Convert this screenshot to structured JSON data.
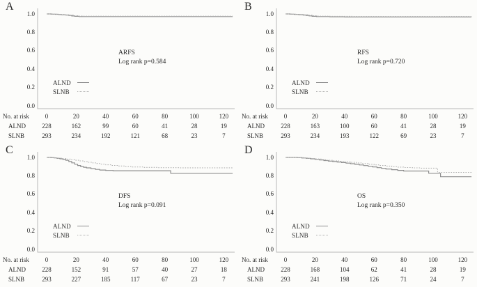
{
  "figure": {
    "background": "#fcfcfa",
    "axis_color": "#b8b8b8",
    "text_color": "#2a2a2a",
    "series_colors": {
      "ALND": "#8e8e8e",
      "SLNB": "#b2b2b2"
    }
  },
  "risk_header": "No. at risk",
  "x_ticks": [
    0,
    20,
    40,
    60,
    80,
    100,
    120
  ],
  "y_tick_labels": [
    "1.0",
    "0.8",
    "0.6",
    "0.4",
    "0.2",
    "0.0"
  ],
  "chart_data": [
    {
      "panel": "A",
      "type": "line",
      "subtype": "kaplan-meier-step",
      "title": "ARFS",
      "subtitle": "Log rank p=0.584",
      "xlabel": "",
      "ylabel": "",
      "xlim": [
        0,
        126
      ],
      "ylim": [
        0.0,
        1.05
      ],
      "x_ticks": [
        0,
        20,
        40,
        60,
        80,
        100,
        120
      ],
      "y_ticks": [
        1.0,
        0.8,
        0.6,
        0.4,
        0.2,
        0.0
      ],
      "grid": false,
      "legend_position": "lower-left",
      "series": [
        {
          "name": "ALND",
          "style": "solid",
          "steps": [
            [
              0,
              1.0
            ],
            [
              3,
              0.998
            ],
            [
              6,
              0.996
            ],
            [
              8,
              0.993
            ],
            [
              10,
              0.99
            ],
            [
              13,
              0.987
            ],
            [
              15,
              0.983
            ],
            [
              17,
              0.978
            ],
            [
              19,
              0.974
            ],
            [
              22,
              0.971
            ],
            [
              126,
              0.971
            ]
          ]
        },
        {
          "name": "SLNB",
          "style": "dotted",
          "steps": [
            [
              0,
              1.0
            ],
            [
              4,
              0.998
            ],
            [
              8,
              0.995
            ],
            [
              12,
              0.991
            ],
            [
              15,
              0.987
            ],
            [
              18,
              0.981
            ],
            [
              21,
              0.977
            ],
            [
              24,
              0.976
            ],
            [
              126,
              0.976
            ]
          ]
        }
      ],
      "risk_table": {
        "label": "No. at risk",
        "times": [
          0,
          20,
          40,
          60,
          80,
          100,
          120
        ],
        "rows": [
          {
            "name": "ALND",
            "counts": [
              228,
              162,
              99,
              60,
              41,
              28,
              19
            ]
          },
          {
            "name": "SLNB",
            "counts": [
              293,
              234,
              192,
              121,
              68,
              23,
              7
            ]
          }
        ]
      }
    },
    {
      "panel": "B",
      "type": "line",
      "subtype": "kaplan-meier-step",
      "title": "RFS",
      "subtitle": "Log rank p=0.720",
      "xlabel": "",
      "ylabel": "",
      "xlim": [
        0,
        126
      ],
      "ylim": [
        0.0,
        1.05
      ],
      "x_ticks": [
        0,
        20,
        40,
        60,
        80,
        100,
        120
      ],
      "y_ticks": [
        1.0,
        0.8,
        0.6,
        0.4,
        0.2,
        0.0
      ],
      "grid": false,
      "legend_position": "lower-left",
      "series": [
        {
          "name": "ALND",
          "style": "solid",
          "steps": [
            [
              0,
              1.0
            ],
            [
              3,
              0.998
            ],
            [
              6,
              0.995
            ],
            [
              9,
              0.992
            ],
            [
              12,
              0.988
            ],
            [
              14,
              0.984
            ],
            [
              16,
              0.979
            ],
            [
              18,
              0.974
            ],
            [
              21,
              0.971
            ],
            [
              30,
              0.969
            ],
            [
              40,
              0.967
            ],
            [
              126,
              0.967
            ]
          ]
        },
        {
          "name": "SLNB",
          "style": "dotted",
          "steps": [
            [
              0,
              1.0
            ],
            [
              4,
              0.998
            ],
            [
              8,
              0.995
            ],
            [
              12,
              0.991
            ],
            [
              15,
              0.986
            ],
            [
              18,
              0.98
            ],
            [
              22,
              0.976
            ],
            [
              30,
              0.974
            ],
            [
              45,
              0.972
            ],
            [
              126,
              0.972
            ]
          ]
        }
      ],
      "risk_table": {
        "label": "No. at risk",
        "times": [
          0,
          20,
          40,
          60,
          80,
          100,
          120
        ],
        "rows": [
          {
            "name": "ALND",
            "counts": [
              228,
              163,
              100,
              60,
              41,
              28,
              19
            ]
          },
          {
            "name": "SLNB",
            "counts": [
              293,
              234,
              193,
              122,
              69,
              23,
              7
            ]
          }
        ]
      }
    },
    {
      "panel": "C",
      "type": "line",
      "subtype": "kaplan-meier-step",
      "title": "DFS",
      "subtitle": "Log rank p=0.091",
      "xlabel": "",
      "ylabel": "",
      "xlim": [
        0,
        126
      ],
      "ylim": [
        0.0,
        1.05
      ],
      "x_ticks": [
        0,
        20,
        40,
        60,
        80,
        100,
        120
      ],
      "y_ticks": [
        1.0,
        0.8,
        0.6,
        0.4,
        0.2,
        0.0
      ],
      "grid": false,
      "legend_position": "lower-left",
      "series": [
        {
          "name": "ALND",
          "style": "solid",
          "steps": [
            [
              0,
              1.0
            ],
            [
              3,
              0.998
            ],
            [
              5,
              0.995
            ],
            [
              7,
              0.99
            ],
            [
              9,
              0.985
            ],
            [
              11,
              0.978
            ],
            [
              13,
              0.968
            ],
            [
              15,
              0.955
            ],
            [
              17,
              0.941
            ],
            [
              19,
              0.926
            ],
            [
              21,
              0.912
            ],
            [
              23,
              0.901
            ],
            [
              25,
              0.893
            ],
            [
              27,
              0.886
            ],
            [
              30,
              0.878
            ],
            [
              33,
              0.87
            ],
            [
              36,
              0.863
            ],
            [
              40,
              0.858
            ],
            [
              45,
              0.855
            ],
            [
              84,
              0.827
            ],
            [
              126,
              0.827
            ]
          ]
        },
        {
          "name": "SLNB",
          "style": "dotted",
          "steps": [
            [
              0,
              1.0
            ],
            [
              4,
              0.998
            ],
            [
              6,
              0.995
            ],
            [
              8,
              0.991
            ],
            [
              10,
              0.987
            ],
            [
              13,
              0.982
            ],
            [
              16,
              0.976
            ],
            [
              19,
              0.969
            ],
            [
              22,
              0.962
            ],
            [
              25,
              0.955
            ],
            [
              28,
              0.948
            ],
            [
              31,
              0.941
            ],
            [
              34,
              0.934
            ],
            [
              37,
              0.927
            ],
            [
              40,
              0.92
            ],
            [
              44,
              0.913
            ],
            [
              48,
              0.907
            ],
            [
              53,
              0.901
            ],
            [
              58,
              0.896
            ],
            [
              65,
              0.892
            ],
            [
              75,
              0.889
            ],
            [
              90,
              0.887
            ],
            [
              126,
              0.887
            ]
          ]
        }
      ],
      "risk_table": {
        "label": "No. at risk",
        "times": [
          0,
          20,
          40,
          60,
          80,
          100,
          120
        ],
        "rows": [
          {
            "name": "ALND",
            "counts": [
              228,
              152,
              91,
              57,
              40,
              27,
              18
            ]
          },
          {
            "name": "SLNB",
            "counts": [
              293,
              227,
              185,
              117,
              67,
              23,
              7
            ]
          }
        ]
      }
    },
    {
      "panel": "D",
      "type": "line",
      "subtype": "kaplan-meier-step",
      "title": "OS",
      "subtitle": "Log rank p=0.350",
      "xlabel": "",
      "ylabel": "",
      "xlim": [
        0,
        126
      ],
      "ylim": [
        0.0,
        1.05
      ],
      "x_ticks": [
        0,
        20,
        40,
        60,
        80,
        100,
        120
      ],
      "y_ticks": [
        1.0,
        0.8,
        0.6,
        0.4,
        0.2,
        0.0
      ],
      "grid": false,
      "legend_position": "lower-left",
      "series": [
        {
          "name": "ALND",
          "style": "solid",
          "steps": [
            [
              0,
              1.0
            ],
            [
              8,
              0.998
            ],
            [
              11,
              0.994
            ],
            [
              14,
              0.99
            ],
            [
              17,
              0.985
            ],
            [
              20,
              0.979
            ],
            [
              23,
              0.973
            ],
            [
              26,
              0.966
            ],
            [
              29,
              0.96
            ],
            [
              32,
              0.955
            ],
            [
              35,
              0.95
            ],
            [
              38,
              0.944
            ],
            [
              41,
              0.938
            ],
            [
              44,
              0.932
            ],
            [
              47,
              0.925
            ],
            [
              50,
              0.918
            ],
            [
              53,
              0.911
            ],
            [
              56,
              0.904
            ],
            [
              59,
              0.897
            ],
            [
              62,
              0.889
            ],
            [
              65,
              0.881
            ],
            [
              68,
              0.874
            ],
            [
              72,
              0.867
            ],
            [
              76,
              0.859
            ],
            [
              80,
              0.852
            ],
            [
              97,
              0.828
            ],
            [
              105,
              0.79
            ],
            [
              126,
              0.79
            ]
          ]
        },
        {
          "name": "SLNB",
          "style": "dotted",
          "steps": [
            [
              0,
              1.0
            ],
            [
              8,
              0.998
            ],
            [
              12,
              0.994
            ],
            [
              16,
              0.989
            ],
            [
              20,
              0.983
            ],
            [
              24,
              0.977
            ],
            [
              28,
              0.97
            ],
            [
              32,
              0.964
            ],
            [
              36,
              0.958
            ],
            [
              40,
              0.952
            ],
            [
              44,
              0.946
            ],
            [
              48,
              0.94
            ],
            [
              52,
              0.933
            ],
            [
              56,
              0.926
            ],
            [
              60,
              0.919
            ],
            [
              64,
              0.912
            ],
            [
              68,
              0.906
            ],
            [
              72,
              0.9
            ],
            [
              76,
              0.895
            ],
            [
              80,
              0.89
            ],
            [
              86,
              0.886
            ],
            [
              92,
              0.883
            ],
            [
              103,
              0.837
            ],
            [
              126,
              0.837
            ]
          ]
        }
      ],
      "risk_table": {
        "label": "No. at risk",
        "times": [
          0,
          20,
          40,
          60,
          80,
          100,
          120
        ],
        "rows": [
          {
            "name": "ALND",
            "counts": [
              228,
              168,
              104,
              62,
              41,
              28,
              19
            ]
          },
          {
            "name": "SLNB",
            "counts": [
              293,
              241,
              198,
              126,
              71,
              24,
              7
            ]
          }
        ]
      }
    }
  ]
}
